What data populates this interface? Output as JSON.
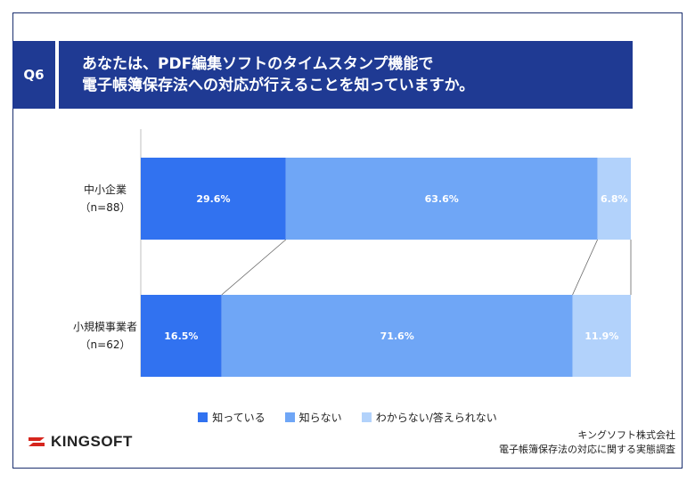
{
  "header": {
    "badge": "Q6",
    "question_line1": "あなたは、PDF編集ソフトのタイムスタンプ機能で",
    "question_line2": "電子帳簿保存法への対応が行えることを知っていますか。"
  },
  "chart_data": {
    "type": "bar",
    "stacked": true,
    "orientation": "horizontal",
    "percent": true,
    "categories": [
      {
        "name": "中小企業",
        "n": "（n=88）"
      },
      {
        "name": "小規模事業者",
        "n": "（n=62）"
      }
    ],
    "series": [
      {
        "name": "知っている",
        "color": "#3172f0",
        "values": [
          29.6,
          16.5
        ],
        "labels": [
          "29.6%",
          "16.5%"
        ]
      },
      {
        "name": "知らない",
        "color": "#6fa6f6",
        "values": [
          63.6,
          71.6
        ],
        "labels": [
          "63.6%",
          "71.6%"
        ]
      },
      {
        "name": "わからない/答えられない",
        "color": "#b2d2fb",
        "values": [
          6.8,
          11.9
        ],
        "labels": [
          "6.8%",
          "11.9%"
        ]
      }
    ],
    "xlim": [
      0,
      100
    ],
    "legend_position": "bottom"
  },
  "footer": {
    "logo_text": "KINGSOFT",
    "source_line1": "キングソフト株式会社",
    "source_line2": "電子帳簿保存法の対応に関する実態調査"
  }
}
